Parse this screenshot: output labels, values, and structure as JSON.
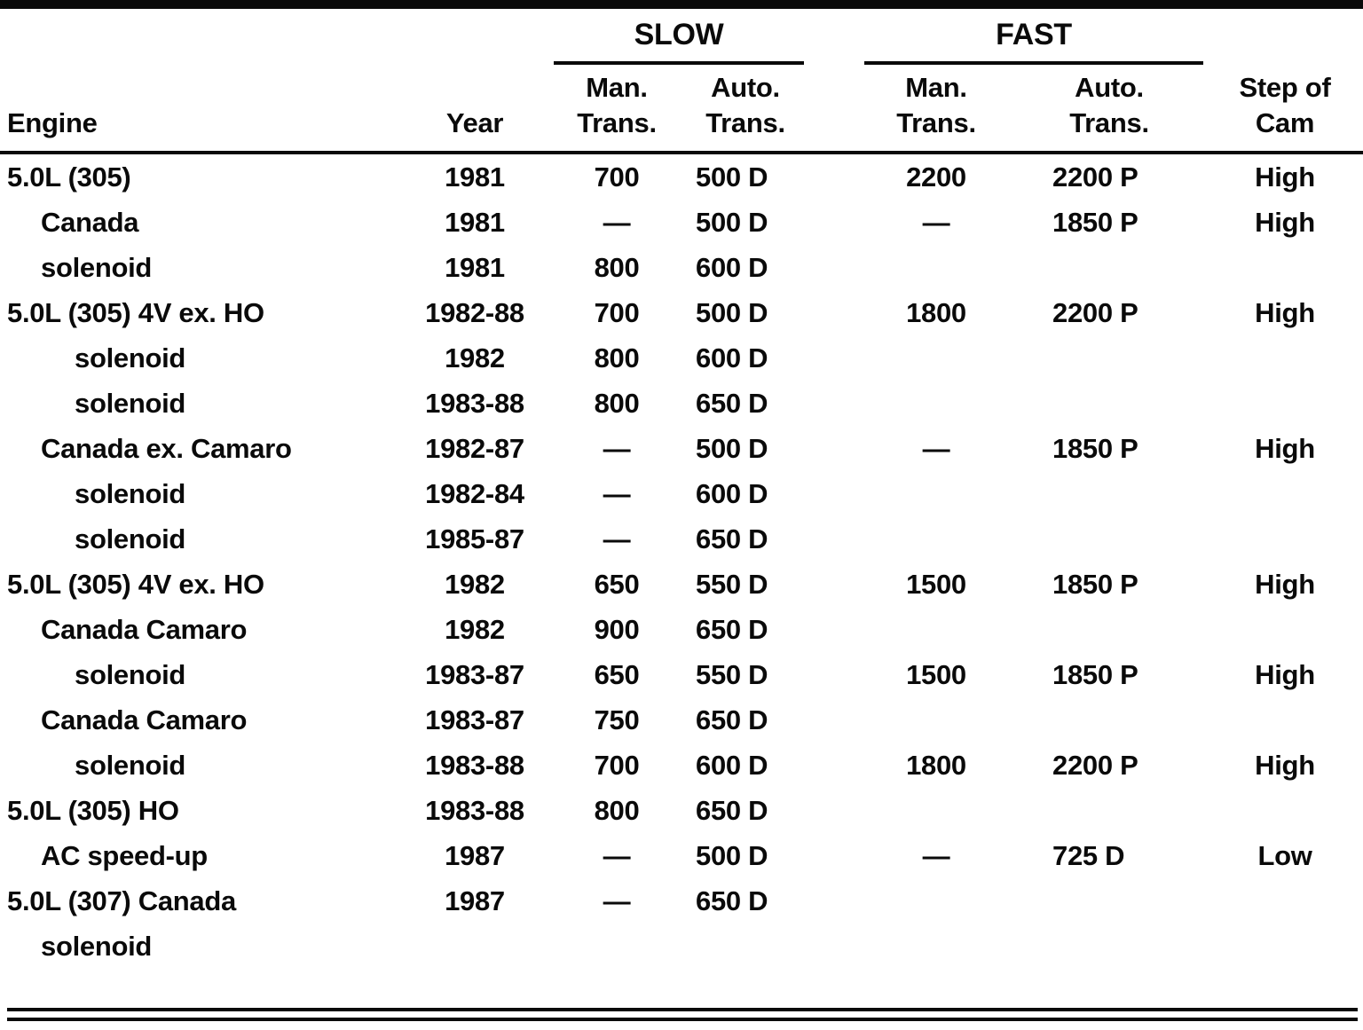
{
  "table": {
    "header": {
      "engine": "Engine",
      "year": "Year",
      "slow": {
        "label": "SLOW",
        "man": [
          "Man.",
          "Trans."
        ],
        "auto": [
          "Auto.",
          "Trans."
        ]
      },
      "fast": {
        "label": "FAST",
        "man": [
          "Man.",
          "Trans."
        ],
        "auto": [
          "Auto.",
          "Trans."
        ]
      },
      "step": [
        "Step of",
        "Cam"
      ]
    },
    "rows": [
      {
        "engine": "5.0L (305)",
        "indent": 0,
        "year": "1981",
        "slow_man": "700",
        "slow_auto": "500 D",
        "fast_man": "2200",
        "fast_auto": "2200 P",
        "cam": "High"
      },
      {
        "engine": "Canada",
        "indent": 1,
        "year": "1981",
        "slow_man": "—",
        "slow_auto": "500 D",
        "fast_man": "—",
        "fast_auto": "1850 P",
        "cam": "High"
      },
      {
        "engine": "solenoid",
        "indent": 1,
        "year": "1981",
        "slow_man": "800",
        "slow_auto": "600 D",
        "fast_man": "",
        "fast_auto": "",
        "cam": ""
      },
      {
        "engine": "5.0L (305) 4V ex. HO",
        "indent": 0,
        "year": "1982-88",
        "slow_man": "700",
        "slow_auto": "500 D",
        "fast_man": "1800",
        "fast_auto": "2200 P",
        "cam": "High"
      },
      {
        "engine": "solenoid",
        "indent": 2,
        "year": "1982",
        "slow_man": "800",
        "slow_auto": "600 D",
        "fast_man": "",
        "fast_auto": "",
        "cam": ""
      },
      {
        "engine": "solenoid",
        "indent": 2,
        "year": "1983-88",
        "slow_man": "800",
        "slow_auto": "650 D",
        "fast_man": "",
        "fast_auto": "",
        "cam": ""
      },
      {
        "engine": "Canada ex. Camaro",
        "indent": 1,
        "year": "1982-87",
        "slow_man": "—",
        "slow_auto": "500 D",
        "fast_man": "—",
        "fast_auto": "1850 P",
        "cam": "High"
      },
      {
        "engine": "solenoid",
        "indent": 2,
        "year": "1982-84",
        "slow_man": "—",
        "slow_auto": "600 D",
        "fast_man": "",
        "fast_auto": "",
        "cam": ""
      },
      {
        "engine": "solenoid",
        "indent": 2,
        "year": "1985-87",
        "slow_man": "—",
        "slow_auto": "650 D",
        "fast_man": "",
        "fast_auto": "",
        "cam": ""
      },
      {
        "engine": "5.0L (305) 4V ex. HO",
        "indent": 0,
        "year": "1982",
        "slow_man": "650",
        "slow_auto": "550 D",
        "fast_man": "1500",
        "fast_auto": "1850 P",
        "cam": "High"
      },
      {
        "engine": "Canada Camaro",
        "indent": 1,
        "year": "1982",
        "slow_man": "900",
        "slow_auto": "650 D",
        "fast_man": "",
        "fast_auto": "",
        "cam": ""
      },
      {
        "engine": "solenoid",
        "indent": 2,
        "year": "1983-87",
        "slow_man": "650",
        "slow_auto": "550 D",
        "fast_man": "1500",
        "fast_auto": "1850 P",
        "cam": "High"
      },
      {
        "engine": "Canada Camaro",
        "indent": 1,
        "year": "1983-87",
        "slow_man": "750",
        "slow_auto": "650 D",
        "fast_man": "",
        "fast_auto": "",
        "cam": ""
      },
      {
        "engine": "solenoid",
        "indent": 2,
        "year": "1983-88",
        "slow_man": "700",
        "slow_auto": "600 D",
        "fast_man": "1800",
        "fast_auto": "2200 P",
        "cam": "High"
      },
      {
        "engine": "5.0L (305) HO",
        "indent": 0,
        "year": "1983-88",
        "slow_man": "800",
        "slow_auto": "650 D",
        "fast_man": "",
        "fast_auto": "",
        "cam": ""
      },
      {
        "engine": "AC speed-up",
        "indent": 1,
        "year": "1987",
        "slow_man": "—",
        "slow_auto": "500 D",
        "fast_man": "—",
        "fast_auto": "725 D",
        "cam": "Low"
      },
      {
        "engine": "5.0L (307) Canada",
        "indent": 0,
        "year": "1987",
        "slow_man": "—",
        "slow_auto": "650 D",
        "fast_man": "",
        "fast_auto": "",
        "cam": ""
      },
      {
        "engine": "solenoid",
        "indent": 1,
        "year": "",
        "slow_man": "",
        "slow_auto": "",
        "fast_man": "",
        "fast_auto": "",
        "cam": ""
      }
    ]
  }
}
